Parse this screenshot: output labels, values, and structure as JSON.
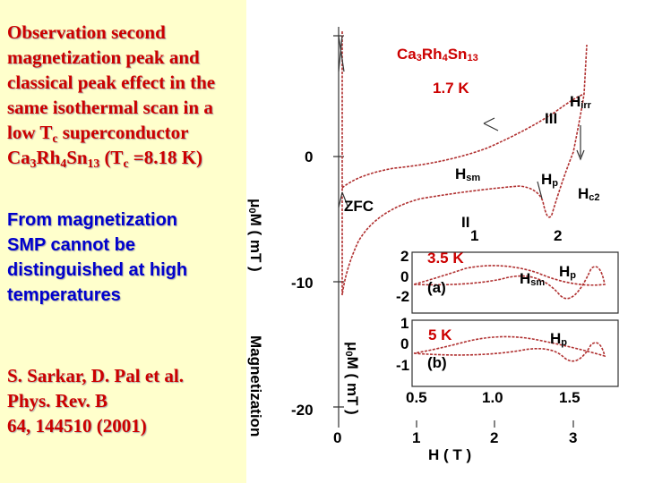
{
  "left": {
    "title": [
      [
        "Observation second"
      ],
      [
        "magnetization peak and"
      ],
      [
        "classical peak effect in the"
      ],
      [
        "same isothermal scan in a"
      ],
      [
        "low T",
        "c",
        " superconductor"
      ],
      [
        "Ca",
        "3",
        "Rh",
        "4",
        "Sn",
        "13",
        " (T",
        "c",
        " =8.18 K)"
      ]
    ],
    "note": [
      [
        "From magnetization"
      ],
      [
        "SMP cannot be"
      ],
      [
        "distinguished at high"
      ],
      [
        "temperatures"
      ]
    ],
    "citation": [
      [
        "S. Sarkar, D. Pal et al."
      ],
      [
        "Phys. Rev. B"
      ],
      [
        "64, 144510 (2001)"
      ]
    ]
  },
  "plot": {
    "formula": [
      "Ca",
      "3",
      "Rh",
      "4",
      "Sn",
      "13"
    ],
    "ylabel": [
      "μ",
      "0",
      "M ( mT )"
    ],
    "ylabel2": [
      "Magnetization"
    ],
    "inset_ylabel": [
      "μ",
      "0",
      "M ( mT )"
    ],
    "labels": [
      [
        "1.7 K"
      ],
      [
        "H",
        "irr"
      ],
      [
        "III"
      ],
      [
        "0"
      ],
      [
        "H",
        "sm"
      ],
      [
        "H",
        "p"
      ],
      [
        "H",
        "c2"
      ],
      [
        "ZFC"
      ],
      [
        "II"
      ],
      [
        "1"
      ],
      [
        "2"
      ],
      [
        "2"
      ],
      [
        "3.5 K"
      ],
      [
        "0"
      ],
      [
        "H",
        "sm"
      ],
      [
        "H",
        "p"
      ],
      [
        "(a)"
      ],
      [
        "-10"
      ],
      [
        "-2"
      ],
      [
        "1"
      ],
      [
        "5 K"
      ],
      [
        "0"
      ],
      [
        "H",
        "p"
      ],
      [
        "-1"
      ],
      [
        "(b)"
      ],
      [
        "0.5"
      ],
      [
        "1.0"
      ],
      [
        "1.5"
      ],
      [
        "-20"
      ],
      [
        "0"
      ],
      [
        "1"
      ],
      [
        "2"
      ],
      [
        "3"
      ],
      [
        "H ( T )"
      ]
    ]
  }
}
